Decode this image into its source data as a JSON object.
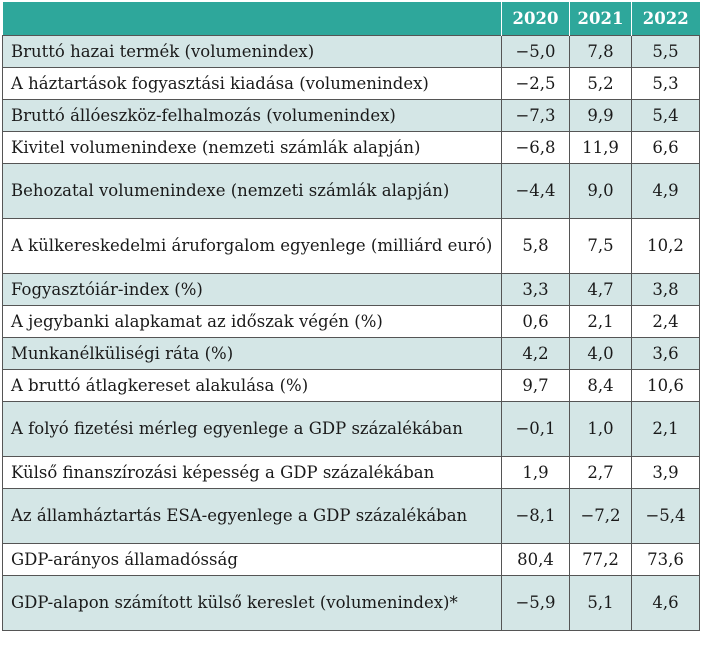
{
  "table": {
    "columns": [
      "",
      "2020",
      "2021",
      "2022"
    ],
    "rows": [
      {
        "label": "Bruttó hazai termék (volumenindex)",
        "v2020": "−5,0",
        "v2021": "7,8",
        "v2022": "5,5"
      },
      {
        "label": "A háztartások fogyasztási kiadása (volumenindex)",
        "v2020": "−2,5",
        "v2021": "5,2",
        "v2022": "5,3"
      },
      {
        "label": "Bruttó állóeszköz-felhalmozás (volumenindex)",
        "v2020": "−7,3",
        "v2021": "9,9",
        "v2022": "5,4"
      },
      {
        "label": "Kivitel volumenindexe (nemzeti számlák alapján)",
        "v2020": "−6,8",
        "v2021": "11,9",
        "v2022": "6,6"
      },
      {
        "label": "Behozatal volumenindexe (nemzeti számlák alapján)",
        "v2020": "−4,4",
        "v2021": "9,0",
        "v2022": "4,9"
      },
      {
        "label": "A külkereskedelmi áruforgalom egyenlege (milliárd euró)",
        "v2020": "5,8",
        "v2021": "7,5",
        "v2022": "10,2"
      },
      {
        "label": "Fogyasztóiár-index (%)",
        "v2020": "3,3",
        "v2021": "4,7",
        "v2022": "3,8"
      },
      {
        "label": "A jegybanki alapkamat az időszak végén (%)",
        "v2020": "0,6",
        "v2021": "2,1",
        "v2022": "2,4"
      },
      {
        "label": "Munkanélküliségi ráta (%)",
        "v2020": "4,2",
        "v2021": "4,0",
        "v2022": "3,6"
      },
      {
        "label": "A bruttó átlagkereset alakulása (%)",
        "v2020": "9,7",
        "v2021": "8,4",
        "v2022": "10,6"
      },
      {
        "label": "A folyó fizetési mérleg egyenlege a GDP százalékában",
        "v2020": "−0,1",
        "v2021": "1,0",
        "v2022": "2,1"
      },
      {
        "label": "Külső finanszírozási képesség a GDP százalékában",
        "v2020": "1,9",
        "v2021": "2,7",
        "v2022": "3,9"
      },
      {
        "label": "Az államháztartás ESA-egyenlege a GDP százalékában",
        "v2020": "−8,1",
        "v2021": "−7,2",
        "v2022": "−5,4"
      },
      {
        "label": "GDP-arányos államadósság",
        "v2020": "80,4",
        "v2021": "77,2",
        "v2022": "73,6"
      },
      {
        "label": "GDP-alapon számított külső kereslet (volumenindex)*",
        "v2020": "−5,9",
        "v2021": "5,1",
        "v2022": "4,6"
      }
    ]
  },
  "colors": {
    "header_bg": "#2ea79b",
    "header_text": "#ffffff",
    "row_shade": "#d4e6e6",
    "row_plain": "#ffffff",
    "border": "#555555"
  }
}
